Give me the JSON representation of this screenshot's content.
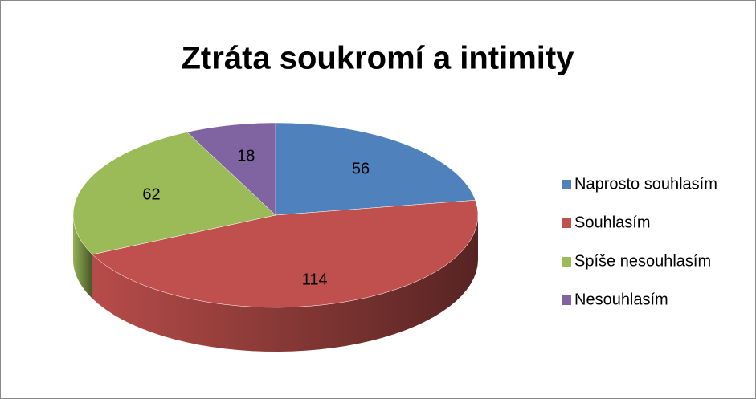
{
  "chart_data": {
    "type": "pie",
    "title": "Ztráta soukromí a intimity",
    "categories": [
      "Naprosto souhlasím",
      "Souhlasím",
      "Spíše nesouhlasím",
      "Nesouhlasím"
    ],
    "values": [
      56,
      114,
      62,
      18
    ],
    "colors": [
      "#4f81bd",
      "#c0504d",
      "#9bbb59",
      "#8064a2"
    ],
    "legend": "right"
  }
}
